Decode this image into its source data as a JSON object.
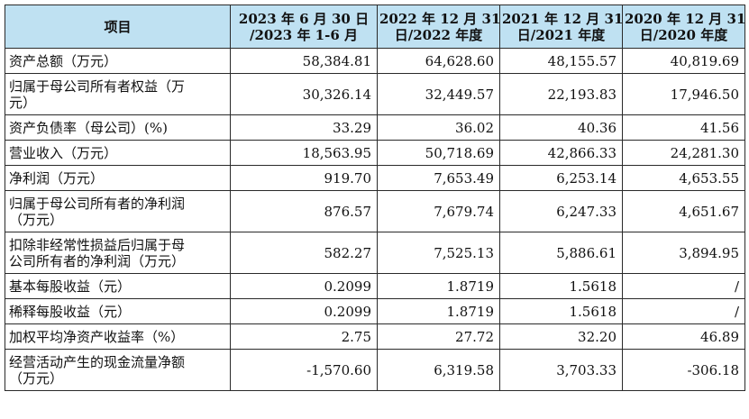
{
  "header": {
    "item": "项目",
    "periods": [
      [
        "2023 年 6 月 30 日",
        "/2023 年 1-6 月"
      ],
      [
        "2022 年 12 月 31",
        "日/2022 年度"
      ],
      [
        "2021 年 12 月 31",
        "日/2021 年度"
      ],
      [
        "2020 年 12 月 31",
        "日/2020 年度"
      ]
    ]
  },
  "rows": [
    {
      "label": [
        "资产总额（万元）"
      ],
      "values": [
        "58,384.81",
        "64,628.60",
        "48,155.57",
        "40,819.69"
      ]
    },
    {
      "label": [
        "归属于母公司所有者权益（万",
        "元）"
      ],
      "values": [
        "30,326.14",
        "32,449.57",
        "22,193.83",
        "17,946.50"
      ]
    },
    {
      "label": [
        "资产负债率（母公司）(%)"
      ],
      "values": [
        "33.29",
        "36.02",
        "40.36",
        "41.56"
      ]
    },
    {
      "label": [
        "营业收入（万元）"
      ],
      "values": [
        "18,563.95",
        "50,718.69",
        "42,866.33",
        "24,281.30"
      ]
    },
    {
      "label": [
        "净利润（万元）"
      ],
      "values": [
        "919.70",
        "7,653.49",
        "6,253.14",
        "4,653.55"
      ]
    },
    {
      "label": [
        "归属于母公司所有者的净利润",
        "（万元）"
      ],
      "values": [
        "876.57",
        "7,679.74",
        "6,247.33",
        "4,651.67"
      ]
    },
    {
      "label": [
        "扣除非经常性损益后归属于母",
        "公司所有者的净利润（万元）"
      ],
      "values": [
        "582.27",
        "7,525.13",
        "5,886.61",
        "3,894.95"
      ]
    },
    {
      "label": [
        "基本每股收益（元）"
      ],
      "values": [
        "0.2099",
        "1.8719",
        "1.5618",
        "/"
      ]
    },
    {
      "label": [
        "稀释每股收益（元）"
      ],
      "values": [
        "0.2099",
        "1.8719",
        "1.5618",
        "/"
      ]
    },
    {
      "label": [
        "加权平均净资产收益率（%）"
      ],
      "values": [
        "2.75",
        "27.72",
        "32.20",
        "46.89"
      ]
    },
    {
      "label": [
        "经营活动产生的现金流量净额",
        "（万元）"
      ],
      "values": [
        "-1,570.60",
        "6,319.58",
        "3,703.33",
        "-306.18"
      ]
    }
  ],
  "colors": {
    "header_bg": "#bfe1f2",
    "border": "#2a2a2a",
    "text": "#111111"
  }
}
